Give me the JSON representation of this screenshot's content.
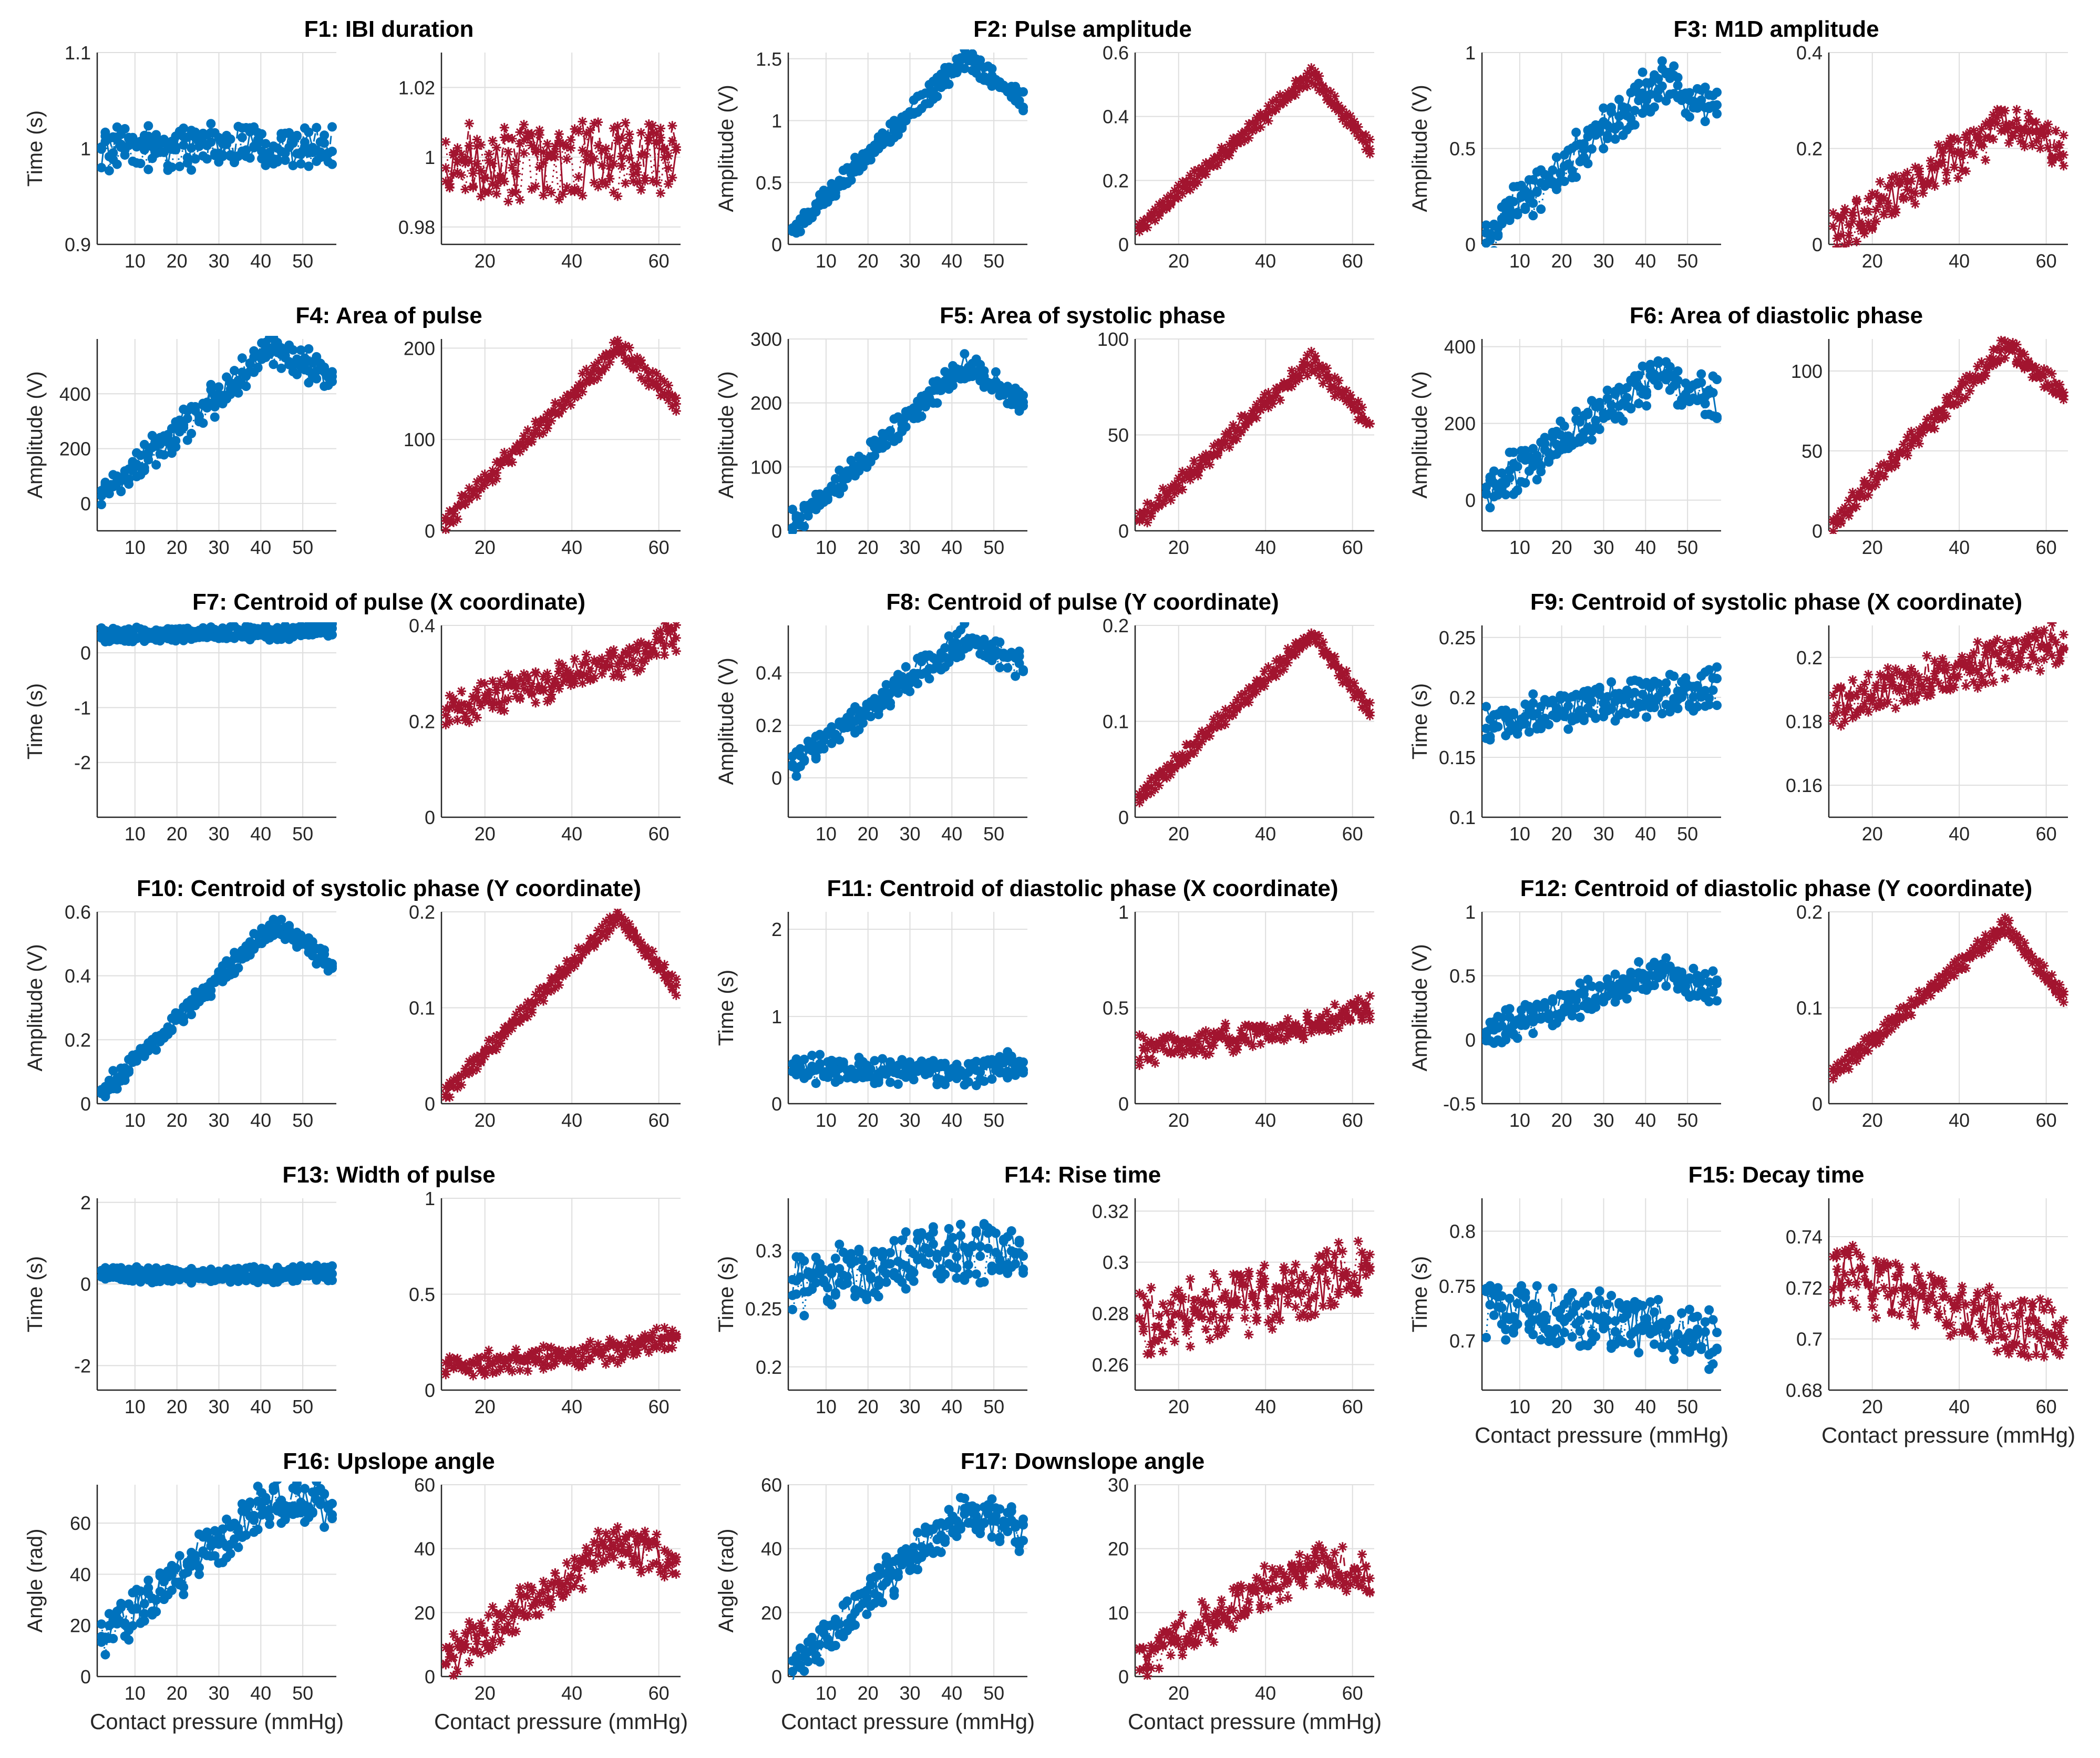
{
  "figure": {
    "colors": {
      "blue": "#0072bd",
      "red": "#a2142f",
      "grid": "#dedede",
      "axis": "#262626"
    },
    "xlabel": "Contact pressure (mmHg)"
  },
  "chart_data": [
    {
      "id": "F1",
      "type": "line",
      "title": "F1: IBI duration",
      "ylabel": "Time (s)",
      "left": {
        "xlim": [
          1,
          58
        ],
        "ylim": [
          0.9,
          1.1
        ],
        "yticks": [
          0.9,
          1,
          1.1
        ],
        "xticks": [
          10,
          20,
          30,
          40,
          50
        ],
        "marker": "dot",
        "level": [
          1.0,
          1.0,
          1.0
        ],
        "noise": 0.02
      },
      "right": {
        "xlim": [
          10,
          65
        ],
        "ylim": [
          0.975,
          1.03
        ],
        "yticks": [
          0.98,
          1,
          1.02
        ],
        "xticks": [
          20,
          40,
          60
        ],
        "marker": "star",
        "level": [
          0.998,
          0.999,
          1.0
        ],
        "noise": 0.01
      }
    },
    {
      "id": "F2",
      "type": "line",
      "title": "F2: Pulse amplitude",
      "ylabel": "Amplitude (V)",
      "left": {
        "xlim": [
          1,
          58
        ],
        "ylim": [
          0,
          1.55
        ],
        "yticks": [
          0,
          0.5,
          1,
          1.5
        ],
        "xticks": [
          10,
          20,
          30,
          40,
          50
        ],
        "marker": "dot",
        "level": [
          0.1,
          1.5,
          1.15
        ],
        "noise": 0.05
      },
      "right": {
        "xlim": [
          10,
          65
        ],
        "ylim": [
          0,
          0.6
        ],
        "yticks": [
          0,
          0.2,
          0.4,
          0.6
        ],
        "xticks": [
          20,
          40,
          60
        ],
        "marker": "star",
        "level": [
          0.05,
          0.53,
          0.3
        ],
        "noise": 0.01
      }
    },
    {
      "id": "F3",
      "type": "line",
      "title": "F3: M1D amplitude",
      "ylabel": "Amplitude (V)",
      "left": {
        "xlim": [
          1,
          58
        ],
        "ylim": [
          0,
          1
        ],
        "yticks": [
          0,
          0.5,
          1
        ],
        "xticks": [
          10,
          20,
          30,
          40,
          50
        ],
        "marker": "dot",
        "level": [
          0.05,
          0.85,
          0.7
        ],
        "noise": 0.1
      },
      "right": {
        "xlim": [
          10,
          65
        ],
        "ylim": [
          0,
          0.4
        ],
        "yticks": [
          0,
          0.2,
          0.4
        ],
        "xticks": [
          20,
          40,
          60
        ],
        "marker": "star",
        "level": [
          0.02,
          0.25,
          0.2
        ],
        "noise": 0.04
      }
    },
    {
      "id": "F4",
      "type": "line",
      "title": "F4: Area of pulse",
      "ylabel": "Amplitude (V)",
      "left": {
        "xlim": [
          1,
          58
        ],
        "ylim": [
          -100,
          600
        ],
        "yticks": [
          0,
          200,
          400
        ],
        "xticks": [
          10,
          20,
          30,
          40,
          50
        ],
        "marker": "dot",
        "level": [
          30,
          560,
          450
        ],
        "noise": 50
      },
      "right": {
        "xlim": [
          10,
          65
        ],
        "ylim": [
          0,
          210
        ],
        "yticks": [
          0,
          100,
          200
        ],
        "xticks": [
          20,
          40,
          60
        ],
        "marker": "star",
        "level": [
          10,
          200,
          140
        ],
        "noise": 6
      }
    },
    {
      "id": "F5",
      "type": "line",
      "title": "F5: Area of systolic phase",
      "ylabel": "Amplitude (V)",
      "left": {
        "xlim": [
          1,
          58
        ],
        "ylim": [
          0,
          300
        ],
        "yticks": [
          0,
          100,
          200,
          300
        ],
        "xticks": [
          10,
          20,
          30,
          40,
          50
        ],
        "marker": "dot",
        "level": [
          10,
          255,
          200
        ],
        "noise": 15
      },
      "right": {
        "xlim": [
          10,
          65
        ],
        "ylim": [
          0,
          100
        ],
        "yticks": [
          0,
          50,
          100
        ],
        "xticks": [
          20,
          40,
          60
        ],
        "marker": "star",
        "level": [
          5,
          88,
          55
        ],
        "noise": 3
      }
    },
    {
      "id": "F6",
      "type": "line",
      "title": "F6: Area of diastolic phase",
      "ylabel": "Amplitude (V)",
      "left": {
        "xlim": [
          1,
          58
        ],
        "ylim": [
          -80,
          420
        ],
        "yticks": [
          0,
          200,
          400
        ],
        "xticks": [
          10,
          20,
          30,
          40,
          50
        ],
        "marker": "dot",
        "level": [
          20,
          320,
          260
        ],
        "noise": 50
      },
      "right": {
        "xlim": [
          10,
          65
        ],
        "ylim": [
          0,
          120
        ],
        "yticks": [
          0,
          50,
          100
        ],
        "xticks": [
          20,
          40,
          60
        ],
        "marker": "star",
        "level": [
          5,
          115,
          85
        ],
        "noise": 4
      }
    },
    {
      "id": "F7",
      "type": "line",
      "title": "F7: Centroid of pulse (X coordinate)",
      "ylabel": "Time (s)",
      "left": {
        "xlim": [
          1,
          58
        ],
        "ylim": [
          -3,
          0.5
        ],
        "yticks": [
          -2,
          -1,
          0
        ],
        "xticks": [
          10,
          20,
          30,
          40,
          50
        ],
        "marker": "dot",
        "level": [
          0.3,
          0.35,
          0.4
        ],
        "noise": 0.05
      },
      "right": {
        "xlim": [
          10,
          65
        ],
        "ylim": [
          0,
          0.4
        ],
        "yticks": [
          0,
          0.2,
          0.4
        ],
        "xticks": [
          20,
          40,
          60
        ],
        "marker": "star",
        "level": [
          0.22,
          0.32,
          0.38
        ],
        "noise": 0.03
      }
    },
    {
      "id": "F8",
      "type": "line",
      "title": "F8: Centroid of pulse (Y coordinate)",
      "ylabel": "Amplitude (V)",
      "left": {
        "xlim": [
          1,
          58
        ],
        "ylim": [
          -0.15,
          0.58
        ],
        "yticks": [
          0,
          0.2,
          0.4
        ],
        "xticks": [
          10,
          20,
          30,
          40,
          50
        ],
        "marker": "dot",
        "level": [
          0.05,
          0.53,
          0.42
        ],
        "noise": 0.04
      },
      "right": {
        "xlim": [
          10,
          65
        ],
        "ylim": [
          0,
          0.2
        ],
        "yticks": [
          0,
          0.1,
          0.2
        ],
        "xticks": [
          20,
          40,
          60
        ],
        "marker": "star",
        "level": [
          0.02,
          0.19,
          0.11
        ],
        "noise": 0.004
      }
    },
    {
      "id": "F9",
      "type": "line",
      "title": "F9: Centroid of systolic phase (X coordinate)",
      "ylabel": "Time (s)",
      "left": {
        "xlim": [
          1,
          58
        ],
        "ylim": [
          0.1,
          0.26
        ],
        "yticks": [
          0.1,
          0.15,
          0.2,
          0.25
        ],
        "xticks": [
          10,
          20,
          30,
          40,
          50
        ],
        "marker": "dot",
        "level": [
          0.18,
          0.2,
          0.21
        ],
        "noise": 0.015
      },
      "right": {
        "xlim": [
          10,
          65
        ],
        "ylim": [
          0.15,
          0.21
        ],
        "yticks": [
          0.16,
          0.18,
          0.2
        ],
        "xticks": [
          20,
          40,
          60
        ],
        "marker": "star",
        "level": [
          0.185,
          0.2,
          0.205
        ],
        "noise": 0.006
      }
    },
    {
      "id": "F10",
      "type": "line",
      "title": "F10: Centroid of systolic phase (Y coordinate)",
      "ylabel": "Amplitude (V)",
      "left": {
        "xlim": [
          1,
          58
        ],
        "ylim": [
          0,
          0.6
        ],
        "yticks": [
          0,
          0.2,
          0.4,
          0.6
        ],
        "xticks": [
          10,
          20,
          30,
          40,
          50
        ],
        "marker": "dot",
        "level": [
          0.03,
          0.56,
          0.43
        ],
        "noise": 0.02
      },
      "right": {
        "xlim": [
          10,
          65
        ],
        "ylim": [
          0,
          0.2
        ],
        "yticks": [
          0,
          0.1,
          0.2
        ],
        "xticks": [
          20,
          40,
          60
        ],
        "marker": "star",
        "level": [
          0.01,
          0.195,
          0.12
        ],
        "noise": 0.004
      }
    },
    {
      "id": "F11",
      "type": "line",
      "title": "F11: Centroid of diastolic phase (X coordinate)",
      "ylabel": "Time (s)",
      "left": {
        "xlim": [
          1,
          58
        ],
        "ylim": [
          0,
          2.2
        ],
        "yticks": [
          0,
          1,
          2
        ],
        "xticks": [
          10,
          20,
          30,
          40,
          50
        ],
        "marker": "dot",
        "level": [
          0.4,
          0.35,
          0.45
        ],
        "noise": 0.12
      },
      "right": {
        "xlim": [
          10,
          65
        ],
        "ylim": [
          0,
          1
        ],
        "yticks": [
          0,
          0.5,
          1
        ],
        "xticks": [
          20,
          40,
          60
        ],
        "marker": "star",
        "level": [
          0.28,
          0.4,
          0.48
        ],
        "noise": 0.06
      }
    },
    {
      "id": "F12",
      "type": "line",
      "title": "F12: Centroid of diastolic phase (Y coordinate)",
      "ylabel": "Amplitude (V)",
      "left": {
        "xlim": [
          1,
          58
        ],
        "ylim": [
          -0.5,
          1
        ],
        "yticks": [
          -0.5,
          0,
          0.5,
          1
        ],
        "xticks": [
          10,
          20,
          30,
          40,
          50
        ],
        "marker": "dot",
        "level": [
          0.05,
          0.52,
          0.4
        ],
        "noise": 0.1
      },
      "right": {
        "xlim": [
          10,
          65
        ],
        "ylim": [
          0,
          0.2
        ],
        "yticks": [
          0,
          0.1,
          0.2
        ],
        "xticks": [
          20,
          40,
          60
        ],
        "marker": "star",
        "level": [
          0.03,
          0.185,
          0.11
        ],
        "noise": 0.004
      }
    },
    {
      "id": "F13",
      "type": "line",
      "title": "F13: Width of pulse",
      "ylabel": "Time (s)",
      "left": {
        "xlim": [
          1,
          58
        ],
        "ylim": [
          -2.6,
          2.1
        ],
        "yticks": [
          -2,
          0,
          2
        ],
        "xticks": [
          10,
          20,
          30,
          40,
          50
        ],
        "marker": "dot",
        "level": [
          0.2,
          0.2,
          0.25
        ],
        "noise": 0.08
      },
      "right": {
        "xlim": [
          10,
          65
        ],
        "ylim": [
          0,
          1
        ],
        "yticks": [
          0,
          0.5,
          1
        ],
        "xticks": [
          20,
          40,
          60
        ],
        "marker": "star",
        "level": [
          0.12,
          0.2,
          0.28
        ],
        "noise": 0.04
      }
    },
    {
      "id": "F14",
      "type": "line",
      "title": "F14: Rise time",
      "ylabel": "Time (s)",
      "left": {
        "xlim": [
          1,
          58
        ],
        "ylim": [
          0.18,
          0.345
        ],
        "yticks": [
          0.2,
          0.25,
          0.3
        ],
        "xticks": [
          10,
          20,
          30,
          40,
          50
        ],
        "marker": "dot",
        "level": [
          0.27,
          0.3,
          0.3
        ],
        "noise": 0.025
      },
      "right": {
        "xlim": [
          10,
          65
        ],
        "ylim": [
          0.25,
          0.325
        ],
        "yticks": [
          0.26,
          0.28,
          0.3,
          0.32
        ],
        "xticks": [
          20,
          40,
          60
        ],
        "marker": "star",
        "level": [
          0.275,
          0.29,
          0.3
        ],
        "noise": 0.012
      }
    },
    {
      "id": "F15",
      "type": "line",
      "title": "F15: Decay time",
      "ylabel": "Time (s)",
      "left": {
        "xlim": [
          1,
          58
        ],
        "ylim": [
          0.655,
          0.83
        ],
        "yticks": [
          0.7,
          0.75,
          0.8
        ],
        "xticks": [
          10,
          20,
          30,
          40,
          50
        ],
        "marker": "dot",
        "level": [
          0.73,
          0.71,
          0.7
        ],
        "noise": 0.025
      },
      "right": {
        "xlim": [
          10,
          65
        ],
        "ylim": [
          0.68,
          0.755
        ],
        "yticks": [
          0.68,
          0.7,
          0.72,
          0.74
        ],
        "xticks": [
          20,
          40,
          60
        ],
        "marker": "star",
        "level": [
          0.725,
          0.705,
          0.7
        ],
        "noise": 0.012
      }
    },
    {
      "id": "F16",
      "type": "line",
      "title": "F16: Upslope angle",
      "ylabel": "Angle (rad)",
      "left": {
        "xlim": [
          1,
          58
        ],
        "ylim": [
          0,
          75
        ],
        "yticks": [
          0,
          20,
          40,
          60
        ],
        "xticks": [
          10,
          20,
          30,
          40,
          50
        ],
        "marker": "dot",
        "level": [
          15,
          70,
          65
        ],
        "noise": 8
      },
      "right": {
        "xlim": [
          10,
          65
        ],
        "ylim": [
          0,
          60
        ],
        "yticks": [
          0,
          20,
          40,
          60
        ],
        "xticks": [
          20,
          40,
          60
        ],
        "marker": "star",
        "level": [
          5,
          42,
          35
        ],
        "noise": 6
      }
    },
    {
      "id": "F17",
      "type": "line",
      "title": "F17: Downslope angle",
      "ylabel": "Angle (rad)",
      "left": {
        "xlim": [
          1,
          58
        ],
        "ylim": [
          0,
          60
        ],
        "yticks": [
          0,
          20,
          40,
          60
        ],
        "xticks": [
          10,
          20,
          30,
          40,
          50
        ],
        "marker": "dot",
        "level": [
          3,
          52,
          45
        ],
        "noise": 6
      },
      "right": {
        "xlim": [
          10,
          65
        ],
        "ylim": [
          0,
          30
        ],
        "yticks": [
          0,
          10,
          20,
          30
        ],
        "xticks": [
          20,
          40,
          60
        ],
        "marker": "star",
        "level": [
          2,
          18,
          15
        ],
        "noise": 3
      }
    }
  ]
}
